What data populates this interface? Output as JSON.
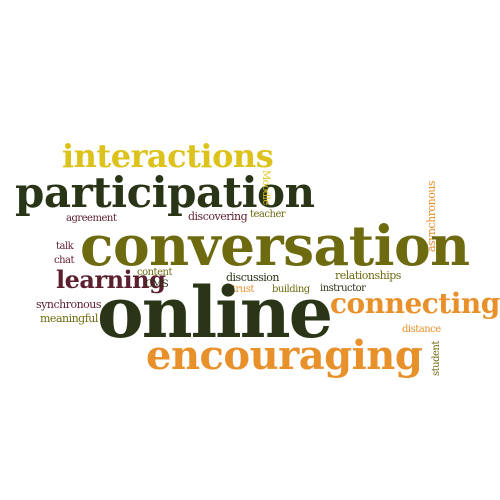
{
  "word_cloud": {
    "colors": {
      "dark_green": "#2a3517",
      "olive": "#6e6a10",
      "yellow": "#dcc21a",
      "orange": "#e8902a",
      "maroon": "#5c1f2e",
      "brown": "#7a3a1c"
    },
    "words": {
      "interactions": "interactions",
      "participation": "participation",
      "moodle": "Moodle",
      "agreement": "agreement",
      "discovering": "discovering",
      "teacher": "teacher",
      "asynchronous": "asynchronous",
      "talk": "talk",
      "chat": "chat",
      "conversation": "conversation",
      "learning": "learning",
      "content": "content",
      "cms": "CMS",
      "discussion": "discussion",
      "relationships": "relationships",
      "trust": "trust",
      "building": "building",
      "instructor": "instructor",
      "synchronous": "synchronous",
      "meaningful": "meaningful",
      "online": "online",
      "connecting": "connecting",
      "distance": "distance",
      "student": "student",
      "encouraging": "encouraging"
    }
  }
}
